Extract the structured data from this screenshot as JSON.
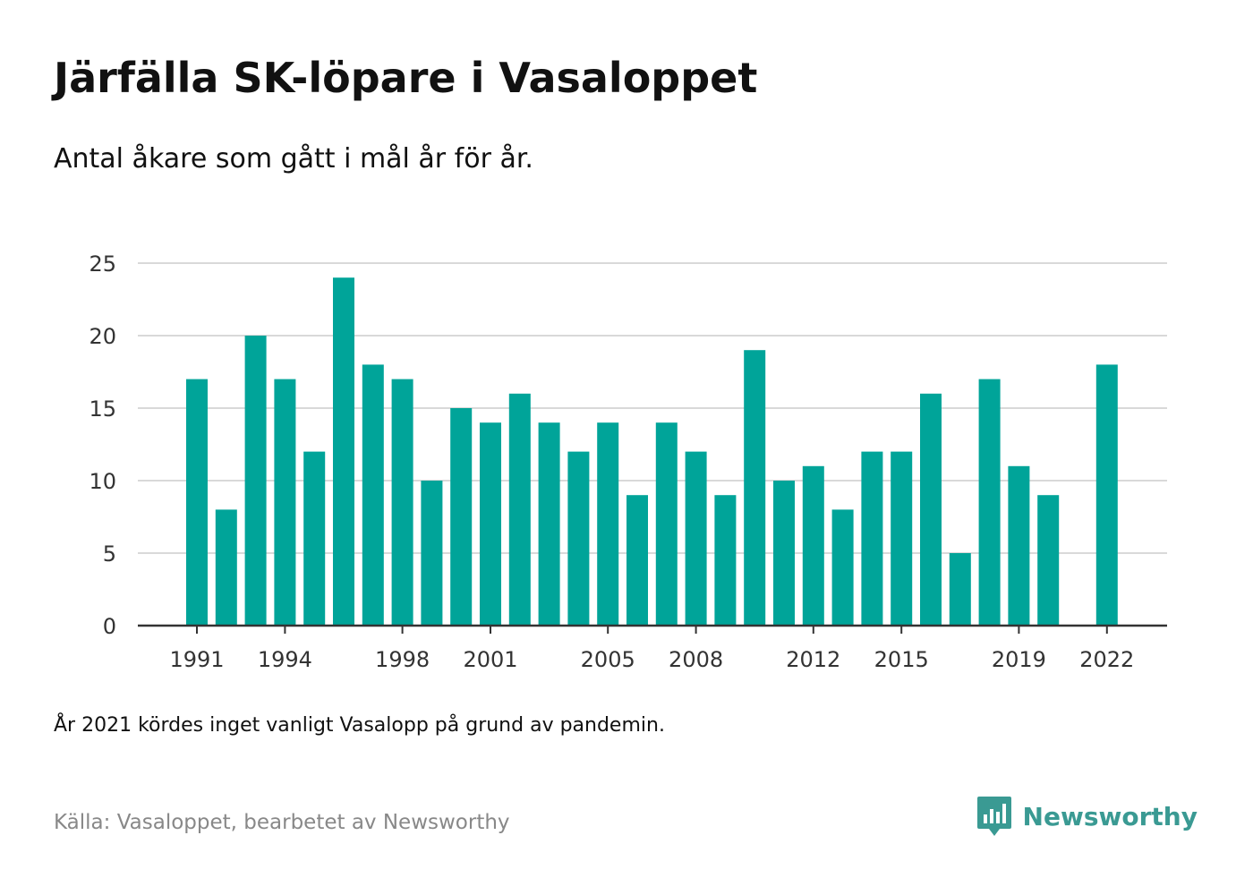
{
  "title": "Järfälla SK-löpare i Vasaloppet",
  "subtitle": "Antal åkare som gått i mål år för år.",
  "note": "År 2021 kördes inget vanligt Vasalopp på grund av pandemin.",
  "source": "Källa: Vasaloppet, bearbetet av Newsworthy",
  "brand": {
    "name": "Newsworthy",
    "icon": "newsworthy-logo-icon",
    "color": "#3a9a93"
  },
  "colors": {
    "bar": "#00a499",
    "grid": "#d9d9d9",
    "axis": "#333333"
  },
  "chart_data": {
    "type": "bar",
    "title": "Järfälla SK-löpare i Vasaloppet",
    "subtitle": "Antal åkare som gått i mål år för år.",
    "xlabel": "",
    "ylabel": "",
    "ylim": [
      0,
      25
    ],
    "yticks": [
      0,
      5,
      10,
      15,
      20,
      25
    ],
    "grid": true,
    "categories": [
      1991,
      1992,
      1993,
      1994,
      1995,
      1996,
      1997,
      1998,
      1999,
      2000,
      2001,
      2002,
      2003,
      2004,
      2005,
      2006,
      2007,
      2008,
      2009,
      2010,
      2011,
      2012,
      2013,
      2014,
      2015,
      2016,
      2017,
      2018,
      2019,
      2020,
      2021,
      2022
    ],
    "values": [
      17,
      8,
      20,
      17,
      12,
      24,
      18,
      17,
      10,
      15,
      14,
      16,
      14,
      12,
      14,
      9,
      14,
      12,
      9,
      19,
      10,
      11,
      8,
      12,
      12,
      16,
      5,
      17,
      11,
      9,
      null,
      18
    ],
    "xtick_labels": [
      "1991",
      "1994",
      "1998",
      "2001",
      "2005",
      "2008",
      "2012",
      "2015",
      "2019",
      "2022"
    ]
  }
}
